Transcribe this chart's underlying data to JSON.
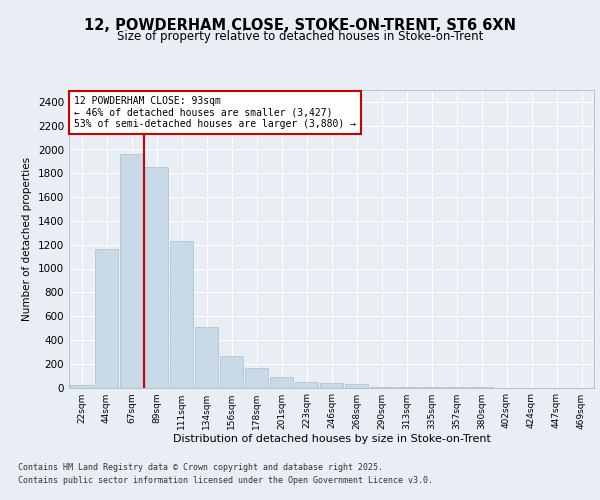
{
  "title_line1": "12, POWDERHAM CLOSE, STOKE-ON-TRENT, ST6 6XN",
  "title_line2": "Size of property relative to detached houses in Stoke-on-Trent",
  "xlabel": "Distribution of detached houses by size in Stoke-on-Trent",
  "ylabel": "Number of detached properties",
  "categories": [
    "22sqm",
    "44sqm",
    "67sqm",
    "89sqm",
    "111sqm",
    "134sqm",
    "156sqm",
    "178sqm",
    "201sqm",
    "223sqm",
    "246sqm",
    "268sqm",
    "290sqm",
    "313sqm",
    "335sqm",
    "357sqm",
    "380sqm",
    "402sqm",
    "424sqm",
    "447sqm",
    "469sqm"
  ],
  "values": [
    25,
    1160,
    1960,
    1850,
    1230,
    510,
    265,
    160,
    92,
    45,
    35,
    30,
    8,
    4,
    2,
    1,
    1,
    0,
    0,
    0,
    0
  ],
  "bar_color": "#c9d9e8",
  "bar_edge_color": "#a8c0d0",
  "vline_color": "#cc0000",
  "vline_bar_index": 3,
  "annotation_text": "12 POWDERHAM CLOSE: 93sqm\n← 46% of detached houses are smaller (3,427)\n53% of semi-detached houses are larger (3,880) →",
  "annotation_box_color": "#ffffff",
  "annotation_box_edge": "#cc0000",
  "ylim": [
    0,
    2500
  ],
  "yticks": [
    0,
    200,
    400,
    600,
    800,
    1000,
    1200,
    1400,
    1600,
    1800,
    2000,
    2200,
    2400
  ],
  "footer_line1": "Contains HM Land Registry data © Crown copyright and database right 2025.",
  "footer_line2": "Contains public sector information licensed under the Open Government Licence v3.0.",
  "bg_color": "#e8eef4",
  "plot_bg_color": "#e8eef4"
}
